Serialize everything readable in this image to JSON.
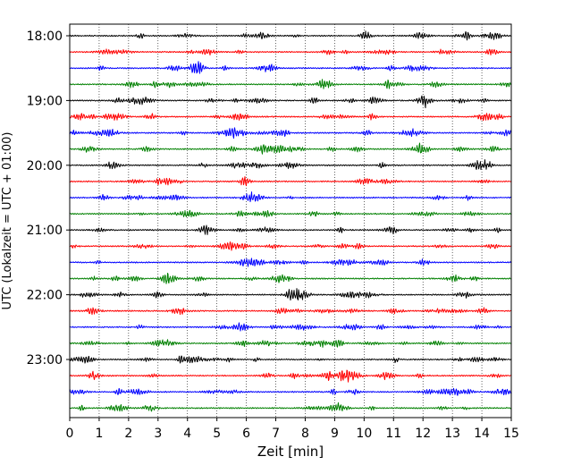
{
  "chart_data": {
    "type": "line",
    "title": "",
    "xlabel": "Zeit  [min]",
    "ylabel": "UTC (Lokalzeit = UTC + 01:00)",
    "xlim": [
      0,
      15
    ],
    "x_ticks": [
      0,
      1,
      2,
      3,
      4,
      5,
      6,
      7,
      8,
      9,
      10,
      11,
      12,
      13,
      14,
      15
    ],
    "y_tick_labels": [
      "18:00",
      "19:00",
      "20:00",
      "21:00",
      "22:00",
      "23:00"
    ],
    "x_grid": true,
    "y_grid": false,
    "legend": "none",
    "trace_interval_min": 15,
    "trace_colors": [
      "#000000",
      "#ff0000",
      "#0000ff",
      "#008000"
    ],
    "traces": [
      {
        "start": "18:00"
      },
      {
        "start": "18:15"
      },
      {
        "start": "18:30"
      },
      {
        "start": "18:45"
      },
      {
        "start": "19:00"
      },
      {
        "start": "19:15"
      },
      {
        "start": "19:30"
      },
      {
        "start": "19:45"
      },
      {
        "start": "20:00"
      },
      {
        "start": "20:15"
      },
      {
        "start": "20:30"
      },
      {
        "start": "20:45"
      },
      {
        "start": "21:00"
      },
      {
        "start": "21:15"
      },
      {
        "start": "21:30"
      },
      {
        "start": "21:45"
      },
      {
        "start": "22:00"
      },
      {
        "start": "22:15"
      },
      {
        "start": "22:30"
      },
      {
        "start": "22:45"
      },
      {
        "start": "23:00"
      },
      {
        "start": "23:15"
      },
      {
        "start": "23:30"
      },
      {
        "start": "23:45"
      }
    ]
  }
}
